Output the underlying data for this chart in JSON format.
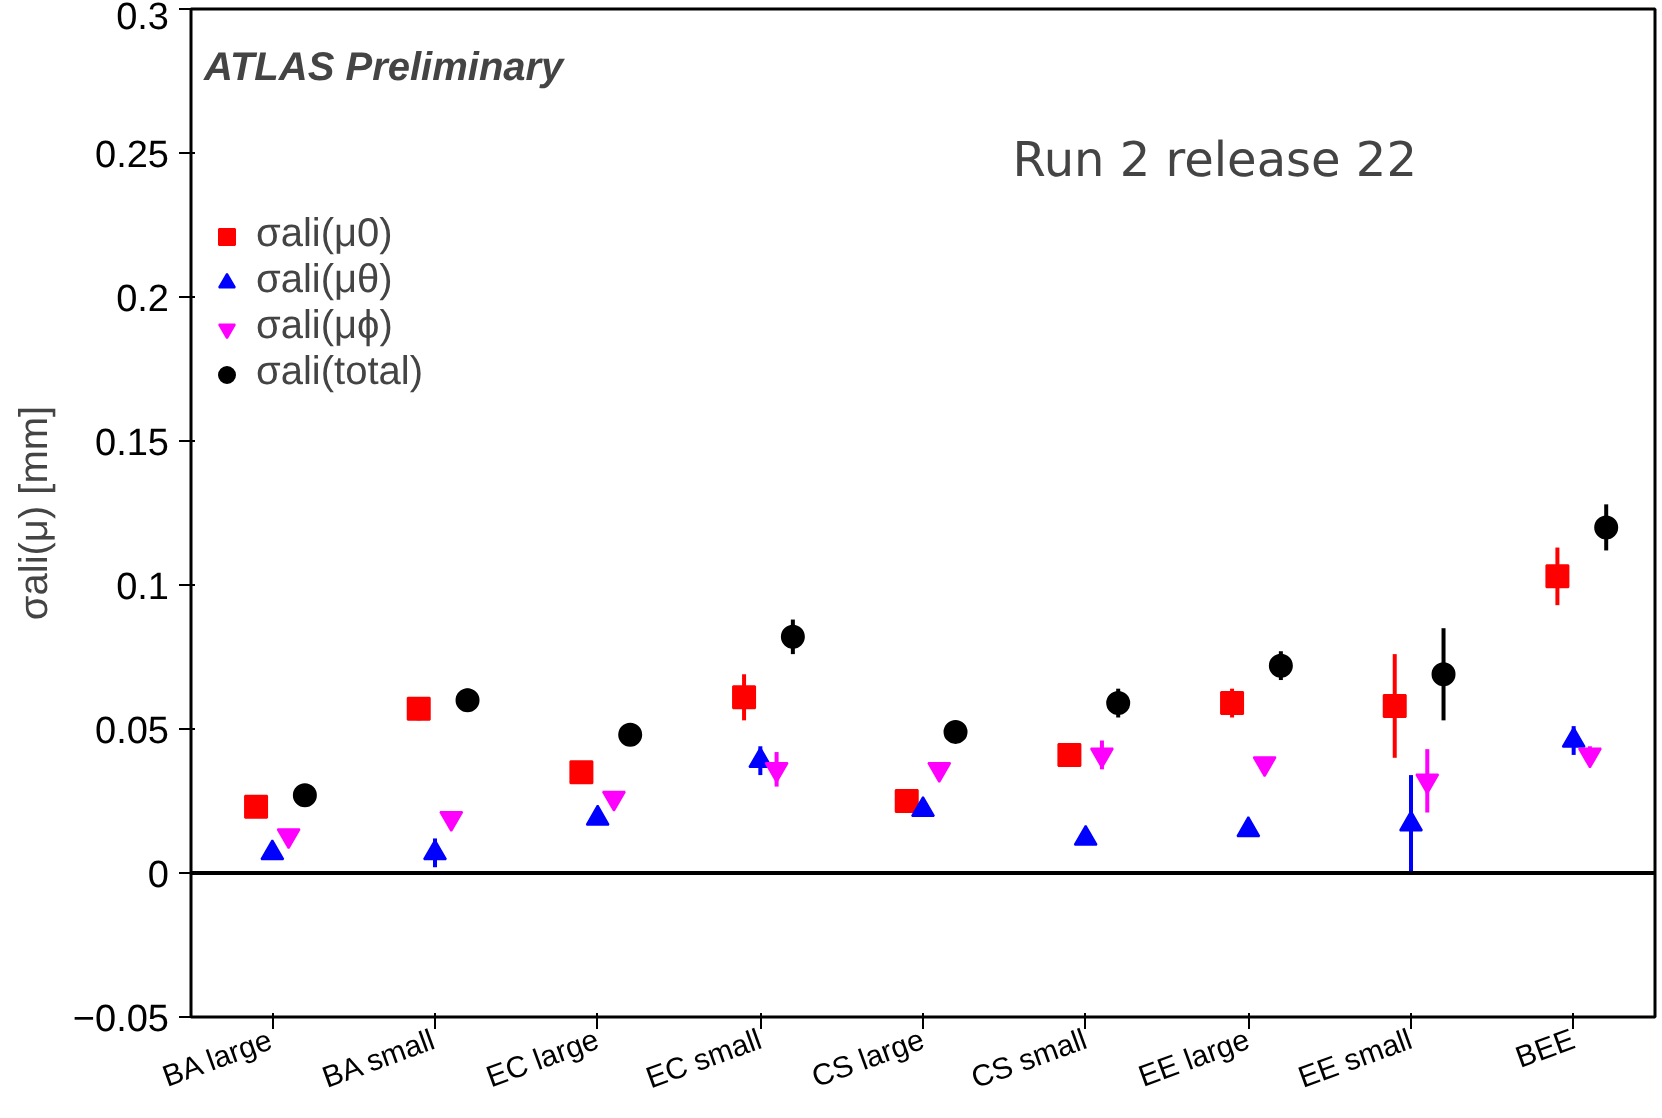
{
  "chart_data": {
    "type": "scatter",
    "ylabel": "σali(μ) [mm]",
    "categories": [
      "BA large",
      "BA small",
      "EC large",
      "EC small",
      "CS large",
      "CS small",
      "EE large",
      "EE small",
      "BEE"
    ],
    "series": [
      {
        "name": "σali(μ0)",
        "color": "#ff0000",
        "marker": "square",
        "values": [
          0.023,
          0.057,
          0.035,
          0.061,
          0.025,
          0.041,
          0.059,
          0.058,
          0.103
        ],
        "errors": [
          0.002,
          0.004,
          0.003,
          0.008,
          0.002,
          0.004,
          0.005,
          0.018,
          0.01
        ]
      },
      {
        "name": "σali(μθ)",
        "color": "#0000ff",
        "marker": "triangle",
        "values": [
          0.007,
          0.007,
          0.019,
          0.039,
          0.022,
          0.012,
          0.015,
          0.017,
          0.046
        ],
        "errors": [
          0.002,
          0.005,
          0.002,
          0.005,
          0.002,
          0.002,
          0.002,
          0.017,
          0.005
        ]
      },
      {
        "name": "σali(μϕ)",
        "color": "#ff00ff",
        "marker": "triangle",
        "values": [
          0.013,
          0.019,
          0.026,
          0.036,
          0.036,
          0.041,
          0.038,
          0.032,
          0.041
        ],
        "errors": [
          0.002,
          0.002,
          0.002,
          0.006,
          0.002,
          0.005,
          0.002,
          0.011,
          0.003
        ]
      },
      {
        "name": "σali(total)",
        "color": "#000000",
        "marker": "circle",
        "values": [
          0.027,
          0.06,
          0.048,
          0.082,
          0.049,
          0.059,
          0.072,
          0.069,
          0.12
        ],
        "errors": [
          0.002,
          0.004,
          0.002,
          0.006,
          0.003,
          0.005,
          0.005,
          0.016,
          0.008
        ]
      }
    ],
    "ylim": [
      -0.05,
      0.3
    ],
    "yticks": [
      {
        "value": -0.05,
        "label": "−0.05"
      },
      0,
      0.05,
      0.1,
      0.15,
      0.2,
      0.25,
      0.3
    ],
    "ref_lines": [
      {
        "axis": "y",
        "value": 0,
        "color": "#000000"
      }
    ],
    "annotations": [
      "ATLAS Preliminary",
      "Run 2 release 22"
    ],
    "legend": "top left",
    "grid": false
  }
}
